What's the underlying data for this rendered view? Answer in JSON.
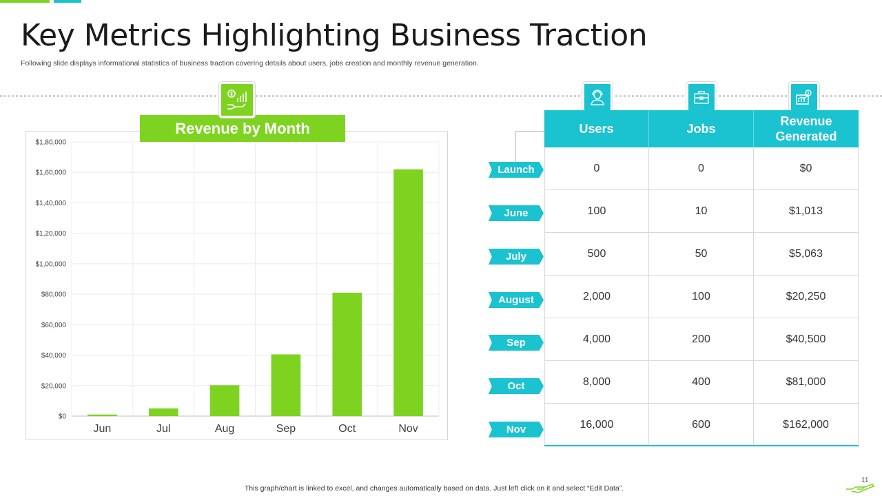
{
  "slide": {
    "title": "Key Metrics Highlighting Business Traction",
    "subtitle": "Following slide displays informational statistics of business traction covering details about users, jobs creation and monthly revenue generation.",
    "footer": "This graph/chart is linked to excel,  and changes automatically based on data. Just left click on it and select “Edit Data”.",
    "page_number": "11"
  },
  "colors": {
    "green": "#7ed321",
    "teal": "#1bc2d0"
  },
  "icons": {
    "chart": "money-growth-icon",
    "users": "user-headset-icon",
    "jobs": "briefcase-icon",
    "revenue": "revenue-chart-icon",
    "footer": "hand-icon"
  },
  "chart_data": {
    "type": "bar",
    "title": "Revenue by Month",
    "categories": [
      "Jun",
      "Jul",
      "Aug",
      "Sep",
      "Oct",
      "Nov"
    ],
    "values": [
      1013,
      5063,
      20250,
      40500,
      81000,
      162000
    ],
    "ylim": [
      0,
      180000
    ],
    "yticks": [
      "$0",
      "$20,000",
      "$40,000",
      "$60,000",
      "$80,000",
      "$1,00,000",
      "$1,20,000",
      "$1,40,000",
      "$1,60,000",
      "$1,80,000"
    ],
    "grid": true,
    "color": "#7ed321"
  },
  "table": {
    "headers": [
      "Users",
      "Jobs",
      "Revenue Generated"
    ],
    "rows": [
      {
        "label": "Launch",
        "users": "0",
        "jobs": "0",
        "revenue": "$0"
      },
      {
        "label": "June",
        "users": "100",
        "jobs": "10",
        "revenue": "$1,013"
      },
      {
        "label": "July",
        "users": "500",
        "jobs": "50",
        "revenue": "$5,063"
      },
      {
        "label": "August",
        "users": "2,000",
        "jobs": "100",
        "revenue": "$20,250"
      },
      {
        "label": "Sep",
        "users": "4,000",
        "jobs": "200",
        "revenue": "$40,500"
      },
      {
        "label": "Oct",
        "users": "8,000",
        "jobs": "400",
        "revenue": "$81,000"
      },
      {
        "label": "Nov",
        "users": "16,000",
        "jobs": "600",
        "revenue": "$162,000"
      }
    ]
  }
}
